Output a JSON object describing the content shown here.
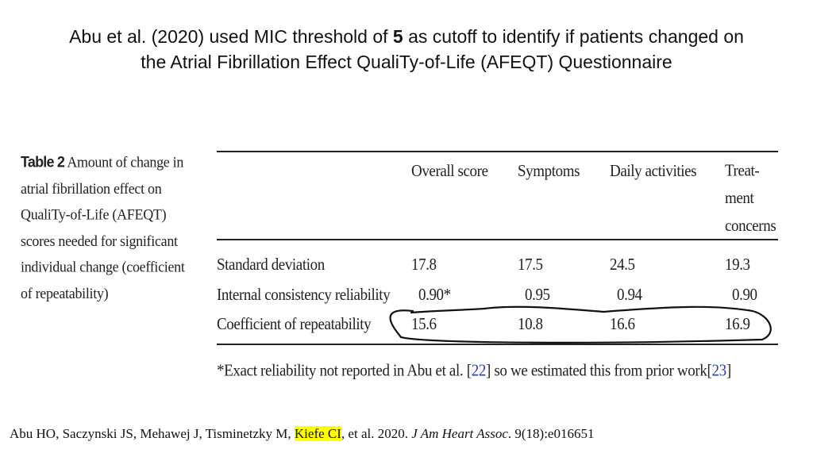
{
  "title": {
    "line1_before": "Abu et al. (2020) used MIC threshold of ",
    "threshold": "5",
    "line1_after": " as cutoff to identify if patients changed on",
    "line2": "the Atrial Fibrillation Effect QualiTy-of-Life (AFEQT) Questionnaire"
  },
  "caption": {
    "number": "Table 2",
    "text": "Amount of change in atrial fibrillation effect on QualiTy-of-Life (AFEQT) scores needed for significant individual change (coefficient of repeatability)"
  },
  "table": {
    "columns": [
      "Overall score",
      "Symptoms",
      "Daily activities",
      "Treat-\nment\nconcerns"
    ],
    "rows": [
      {
        "label": "Standard deviation",
        "values": [
          "17.8",
          "17.5",
          "24.5",
          "19.3"
        ]
      },
      {
        "label": "Internal consistency reliability",
        "values": [
          "0.90*",
          "0.95",
          "0.94",
          "0.90"
        ]
      },
      {
        "label": "Coefficient of repeatability",
        "values": [
          "15.6",
          "10.8",
          "16.6",
          "16.9"
        ]
      }
    ],
    "annotation_color": "#111111"
  },
  "footnote": {
    "text_before": "*Exact reliability not reported in Abu et al. [",
    "ref1": "22",
    "text_middle": "] so we estimated this from prior work[",
    "ref2": "23",
    "text_after": "]",
    "link_color": "#2a3fa8"
  },
  "citation": {
    "authors_before": "Abu HO, Saczynski JS, Mehawej J, Tisminetzky M, ",
    "highlighted_author": "Kiefe CI",
    "after_author": ", et al. 2020. ",
    "journal": "J Am Heart Assoc",
    "details": ". 9(18):e016651",
    "highlight_color": "#ffff00"
  }
}
